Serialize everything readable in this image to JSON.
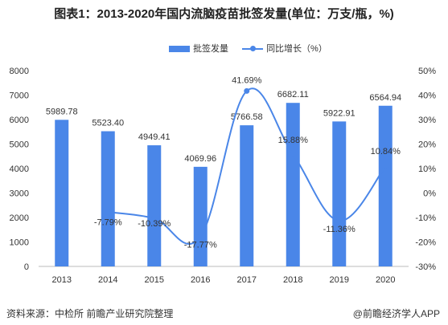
{
  "header": {
    "title": "图表1：2013-2020年国内流脑疫苗批签发量(单位：万支/瓶，%)"
  },
  "footer": {
    "source": "资料来源：中检所 前瞻产业研究院整理",
    "credit": "@前瞻经济学人APP"
  },
  "colors": {
    "bar": "#4a86e8",
    "line": "#4a86e8",
    "axis": "#888888",
    "text": "#333333"
  },
  "chart_data": {
    "type": "bar",
    "title": "图表1：2013-2020年国内流脑疫苗批签发量(单位：万支/瓶，%)",
    "categories": [
      "2013",
      "2014",
      "2015",
      "2016",
      "2017",
      "2018",
      "2019",
      "2020"
    ],
    "series": [
      {
        "name": "批签发量",
        "type": "bar",
        "axis": "left",
        "values": [
          5989.78,
          5523.4,
          4949.41,
          4069.96,
          5766.58,
          6682.11,
          5922.91,
          6564.94
        ],
        "labels": [
          "5989.78",
          "5523.40",
          "4949.41",
          "4069.96",
          "5766.58",
          "6682.11",
          "5922.91",
          "6564.94"
        ]
      },
      {
        "name": "同比增长（%）",
        "type": "line",
        "axis": "right",
        "values": [
          null,
          -7.79,
          -10.39,
          -17.77,
          41.69,
          15.88,
          -11.36,
          10.84
        ],
        "labels": [
          "",
          "-7.79%",
          "-10.39%",
          "-17.77%",
          "41.69%",
          "15.88%",
          "-11.36%",
          "10.84%"
        ]
      }
    ],
    "ylim_left": [
      0,
      8000
    ],
    "yticks_left": [
      "0",
      "1000",
      "2000",
      "3000",
      "4000",
      "5000",
      "6000",
      "7000",
      "8000"
    ],
    "ylim_right": [
      -30,
      50
    ],
    "yticks_right": [
      "-30%",
      "-20%",
      "-10%",
      "0%",
      "10%",
      "20%",
      "30%",
      "40%",
      "50%"
    ],
    "legend": "top-center",
    "grid": false
  }
}
